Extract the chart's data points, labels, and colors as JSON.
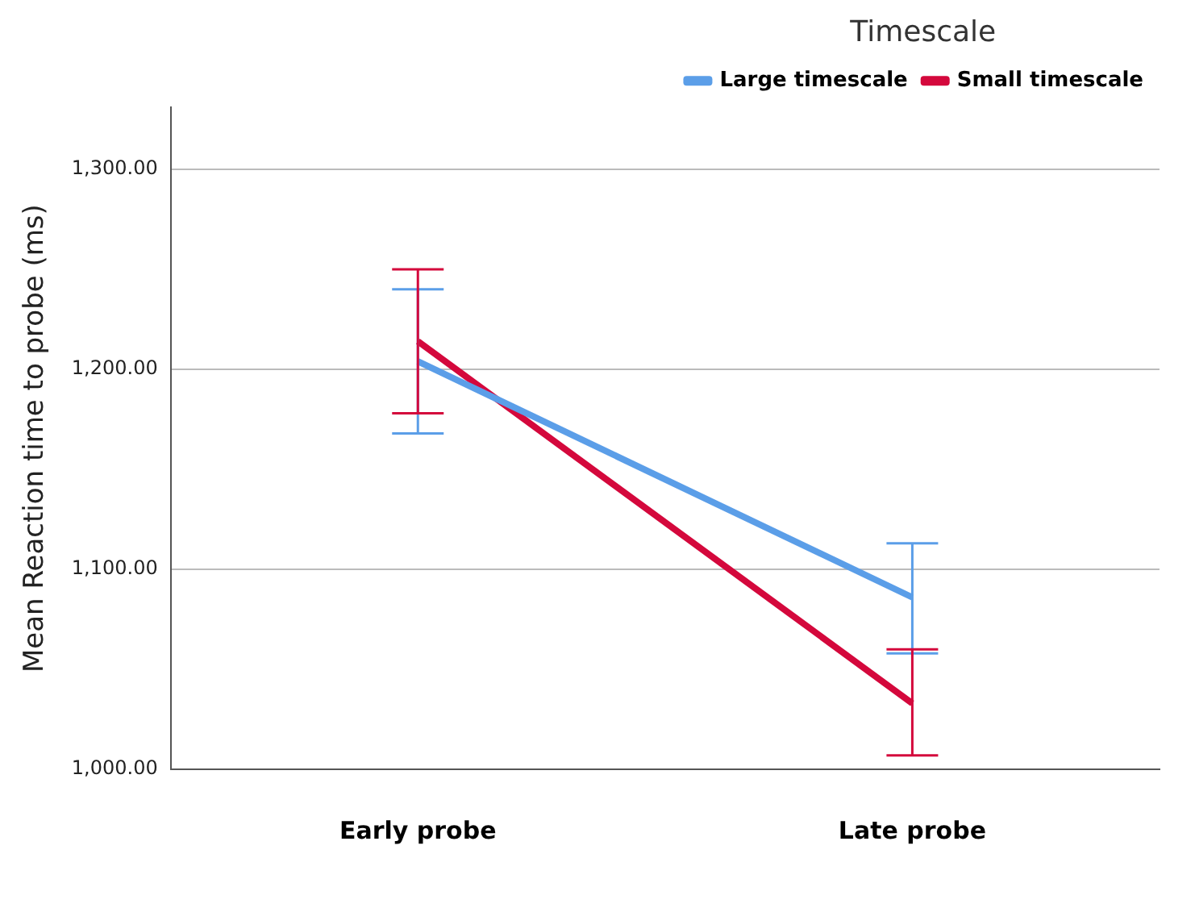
{
  "chart_data": {
    "type": "line",
    "ylabel": "Mean Reaction time to probe (ms)",
    "legend_title": "Timescale",
    "categories": [
      "Early probe",
      "Late probe"
    ],
    "series": [
      {
        "name": "Large timescale",
        "color": "#5b9ee8",
        "values": [
          1204,
          1086
        ],
        "errors": [
          [
            1168,
            1240
          ],
          [
            1058,
            1113
          ]
        ]
      },
      {
        "name": "Small timescale",
        "color": "#d4083c",
        "values": [
          1214,
          1033
        ],
        "errors": [
          [
            1178,
            1250
          ],
          [
            1007,
            1060
          ]
        ]
      }
    ],
    "ylim": [
      1000,
      1331
    ],
    "yticks": [
      {
        "value": 1000,
        "label": "1,000.00"
      },
      {
        "value": 1100,
        "label": "1,100.00"
      },
      {
        "value": 1200,
        "label": "1,200.00"
      },
      {
        "value": 1300,
        "label": "1,300.00"
      }
    ],
    "grid": "y",
    "legend": "top right",
    "marker": "none",
    "line_style": "solid"
  }
}
